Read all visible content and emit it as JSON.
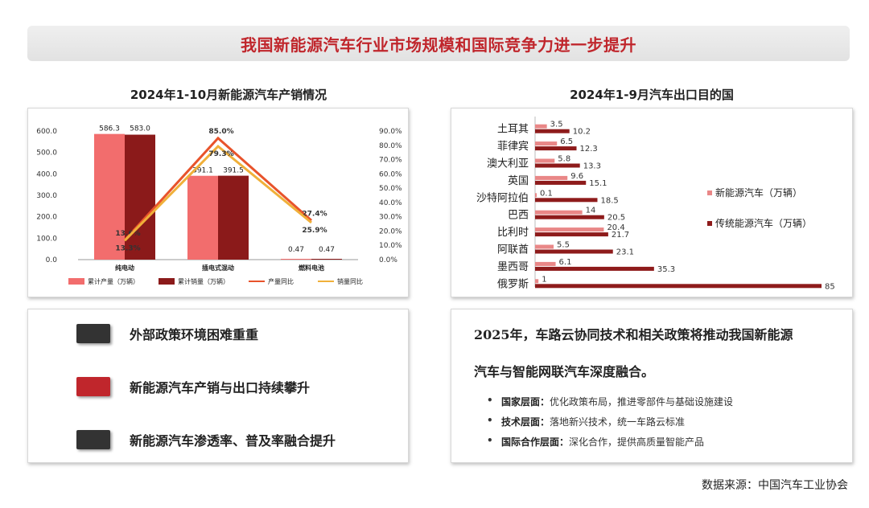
{
  "page": {
    "title": "我国新能源汽车行业市场规模和国际竞争力进一步提升",
    "source": "数据来源：中国汽车工业协会"
  },
  "colors": {
    "production": "#f26d6d",
    "sales": "#8b1a1a",
    "production_yoy_line": "#e8532b",
    "sales_yoy_line": "#f0b03a",
    "title_red": "#c0262c",
    "nev_export": "#e98787",
    "traditional_export": "#8e1b1b"
  },
  "chart_data": [
    {
      "type": "bar",
      "title": "2024年1-10月新能源汽车产销情况",
      "categories": [
        "纯电动",
        "插电式混动",
        "燃料电池"
      ],
      "ylim": [
        0,
        600
      ],
      "y_ticks": [
        "0.0",
        "100.0",
        "200.0",
        "300.0",
        "400.0",
        "500.0",
        "600.0"
      ],
      "y2lim": [
        0,
        90
      ],
      "y2_ticks": [
        "0.0%",
        "10.0%",
        "20.0%",
        "30.0%",
        "40.0%",
        "50.0%",
        "60.0%",
        "70.0%",
        "80.0%",
        "90.0%"
      ],
      "series": [
        {
          "name": "累计产量（万辆）",
          "kind": "bar",
          "axis": "left",
          "values": [
            586.3,
            391.1,
            0.47
          ],
          "labels": [
            "586.3",
            "391.1",
            "0.47"
          ]
        },
        {
          "name": "累计销量（万辆）",
          "kind": "bar",
          "axis": "left",
          "values": [
            583.0,
            391.5,
            0.47
          ],
          "labels": [
            "583.0",
            "391.5",
            "0.47"
          ]
        },
        {
          "name": "产量同比",
          "kind": "line",
          "axis": "right",
          "values": [
            13.6,
            85.0,
            27.4
          ],
          "labels": [
            "13.6%",
            "85.0%",
            "27.4%"
          ]
        },
        {
          "name": "销量同比",
          "kind": "line",
          "axis": "right",
          "values": [
            13.3,
            79.3,
            25.9
          ],
          "labels": [
            "13.3%",
            "79.3%",
            "25.9%"
          ]
        }
      ],
      "legend": "bottom"
    },
    {
      "type": "bar",
      "orientation": "horizontal",
      "title": "2024年1-9月汽车出口目的国",
      "categories": [
        "土耳其",
        "菲律宾",
        "澳大利亚",
        "英国",
        "沙特阿拉伯",
        "巴西",
        "比利时",
        "阿联酋",
        "墨西哥",
        "俄罗斯"
      ],
      "xlim": [
        0,
        85
      ],
      "series": [
        {
          "name": "新能源汽车（万辆）",
          "values": [
            3.5,
            6.5,
            5.8,
            9.6,
            0.1,
            14,
            20.4,
            5.5,
            6.1,
            1
          ],
          "labels": [
            "3.5",
            "6.5",
            "5.8",
            "9.6",
            "0.1",
            "14",
            "20.4",
            "5.5",
            "6.1",
            "1"
          ]
        },
        {
          "name": "传统能源汽车（万辆）",
          "values": [
            10.2,
            12.3,
            13.3,
            15.1,
            18.5,
            20.5,
            21.7,
            23.1,
            35.3,
            85
          ],
          "labels": [
            "10.2",
            "12.3",
            "13.3",
            "15.1",
            "18.5",
            "20.5",
            "21.7",
            "23.1",
            "35.3",
            "85"
          ]
        }
      ],
      "legend": "right"
    }
  ],
  "factors": [
    {
      "text": "外部政策环境困难重重",
      "color": "#333333"
    },
    {
      "text": "新能源汽车产销与出口持续攀升",
      "color": "#c0262c"
    },
    {
      "text": "新能源汽车渗透率、普及率融合提升",
      "color": "#333333"
    }
  ],
  "policy": {
    "heading_line1": "2025年，车路云协同技术和相关政策将推动我国新能源",
    "heading_line2": "汽车与智能网联汽车深度融合。",
    "bullets": [
      {
        "key": "国家层面：",
        "text": "优化政策布局，推进零部件与基础设施建设"
      },
      {
        "key": "技术层面：",
        "text": "落地新兴技术，统一车路云标准"
      },
      {
        "key": "国际合作层面：",
        "text": "深化合作，提供高质量智能产品"
      }
    ],
    "bullet_symbol": "•"
  }
}
